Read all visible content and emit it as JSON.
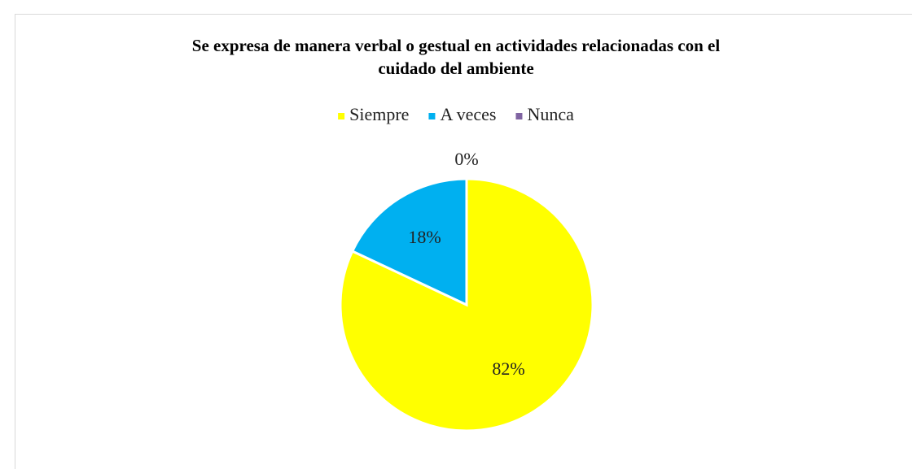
{
  "chart_data": {
    "type": "pie",
    "title": "Se expresa de manera verbal o gestual en actividades relacionadas con el cuidado del ambiente",
    "categories": [
      "Siempre",
      "A veces",
      "Nunca"
    ],
    "values": [
      82,
      18,
      0
    ],
    "value_labels": [
      "82%",
      "18%",
      "0%"
    ],
    "colors": [
      "#ffff00",
      "#00b0f0",
      "#8064a2"
    ],
    "legend": "top"
  }
}
